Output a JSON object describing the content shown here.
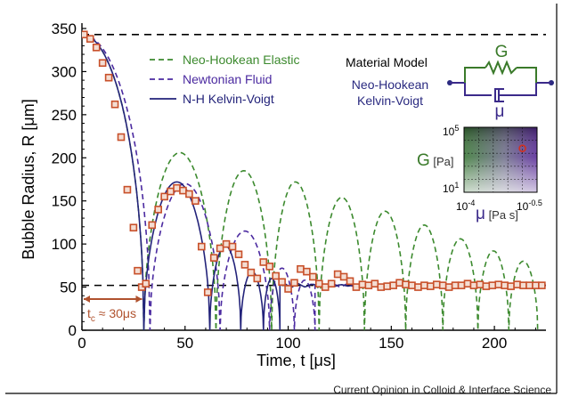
{
  "credit": "Current Opinion in Colloid & Interface Science",
  "chart_data": {
    "type": "line",
    "xlabel": "Time, t [μs]",
    "ylabel": "Bubble Radius, R [μm]",
    "xlim": [
      0,
      225
    ],
    "ylim": [
      0,
      350
    ],
    "xticks": [
      "0",
      "50",
      "100",
      "150",
      "200"
    ],
    "yticks": [
      "0",
      "50",
      "100",
      "150",
      "200",
      "250",
      "300",
      "350"
    ],
    "reference_lines": [
      343,
      52
    ],
    "tc_label": "t",
    "tc_sub": "c",
    "tc_value": " ≈ 30μs",
    "tc_value_us": 30,
    "legend_position": "top-center",
    "series": [
      {
        "name": "Neo-Hookean Elastic",
        "style": "dashed",
        "color": "#3c8a2e",
        "cycles": [
          [
            0,
            30,
            343
          ],
          [
            30,
            65,
            206
          ],
          [
            65,
            92,
            185
          ],
          [
            92,
            115,
            172
          ],
          [
            115,
            137,
            154
          ],
          [
            137,
            157,
            138
          ],
          [
            157,
            175,
            122
          ],
          [
            175,
            192,
            106
          ],
          [
            192,
            207,
            92
          ],
          [
            207,
            221,
            80
          ]
        ],
        "floor": 0
      },
      {
        "name": "Newtonian Fluid",
        "style": "dashed",
        "color": "#4b2aa0",
        "cycles": [
          [
            0,
            33,
            343
          ],
          [
            33,
            67,
            170
          ],
          [
            67,
            91,
            115
          ],
          [
            91,
            103,
            72
          ],
          [
            103,
            113,
            58
          ]
        ],
        "floor": 52
      },
      {
        "name": "N-H Kelvin-Voigt",
        "style": "solid",
        "color": "#23237a",
        "cycles": [
          [
            0,
            30,
            343
          ],
          [
            30,
            62,
            172
          ],
          [
            62,
            77,
            98
          ],
          [
            77,
            88,
            68
          ],
          [
            88,
            96,
            60
          ]
        ],
        "floor": 52
      }
    ],
    "experiment": {
      "name": "experiment",
      "color": "#c8502a",
      "x": [
        1,
        4,
        7,
        10,
        13,
        16,
        19,
        22,
        25,
        27,
        29,
        31,
        34,
        37,
        40,
        43,
        46,
        49,
        52,
        55,
        58,
        61,
        64,
        67,
        70,
        73,
        76,
        79,
        82,
        85,
        88,
        91,
        94,
        97,
        100,
        103,
        106,
        109,
        112,
        115,
        118,
        121,
        124,
        127,
        130,
        133,
        136,
        139,
        142,
        145,
        148,
        151,
        154,
        157,
        160,
        163,
        166,
        169,
        172,
        175,
        178,
        181,
        184,
        187,
        190,
        193,
        196,
        199,
        202,
        205,
        208,
        211,
        214,
        217,
        220,
        223
      ],
      "y": [
        343,
        338,
        328,
        310,
        293,
        262,
        224,
        163,
        119,
        69,
        50,
        54,
        122,
        140,
        155,
        161,
        165,
        162,
        158,
        150,
        97,
        44,
        84,
        95,
        100,
        97,
        88,
        76,
        67,
        60,
        79,
        74,
        63,
        56,
        48,
        55,
        71,
        68,
        62,
        54,
        50,
        54,
        65,
        62,
        57,
        50,
        53,
        52,
        54,
        50,
        51,
        52,
        55,
        53,
        52,
        50,
        52,
        51,
        53,
        52,
        50,
        52,
        52,
        54,
        52,
        53,
        51,
        52,
        53,
        52,
        51,
        53,
        52,
        52,
        52,
        52
      ]
    },
    "inset": {
      "title": "Material Model",
      "spring_label": "G",
      "dashpot_label": "μ",
      "model_name_1": "Neo-Hookean",
      "model_name_2": "Kelvin-Voigt",
      "y_axis_label": "G",
      "y_axis_unit": " [Pa]",
      "y_top_base": "10",
      "y_top_exp": "5",
      "y_bottom_base": "10",
      "y_bottom_exp": "1",
      "x_axis_label": "μ",
      "x_axis_unit": " [Pa s]",
      "x_left_base": "10",
      "x_left_exp": "-4",
      "x_right_base": "10",
      "x_right_exp": "-0.5",
      "marker_G_log10": 3.7,
      "marker_mu_log10": -1.2
    },
    "colors": {
      "marker_edge": "#c8502a",
      "marker_face": "#f4ddd2",
      "tc_arrow": "#b0522e",
      "inset_spring": "#3a7a2a",
      "inset_dashpot": "#3b2a8a"
    }
  }
}
